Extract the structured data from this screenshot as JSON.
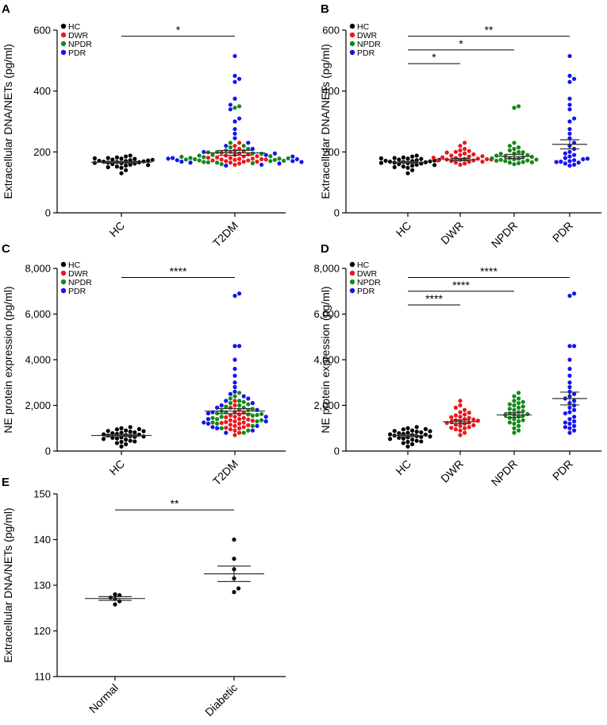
{
  "colors": {
    "HC": "#000000",
    "DWR": "#e8191c",
    "NPDR": "#138a17",
    "PDR": "#1414ee"
  },
  "chart_data": [
    {
      "panel": "A",
      "type": "scatter",
      "ylabel": "Extracellular DNA/NETs (pg/ml)",
      "ylim": [
        0,
        600
      ],
      "yticks": [
        "0",
        "200",
        "400",
        "600"
      ],
      "ytick_values": [
        0,
        200,
        400,
        600
      ],
      "categories": [
        "HC",
        "T2DM"
      ],
      "rotate_labels": true,
      "legend": [
        "HC",
        "DWR",
        "NPDR",
        "PDR"
      ],
      "means": [
        166,
        197
      ],
      "sem": [
        3,
        8
      ],
      "significance": [
        {
          "from": 0,
          "to": 1,
          "text": "*",
          "y": 580
        }
      ],
      "groups": [
        {
          "category": 0,
          "series": [
            {
              "name": "HC",
              "values": [
                130,
                140,
                148,
                152,
                155,
                158,
                160,
                162,
                163,
                165,
                166,
                167,
                168,
                169,
                170,
                171,
                172,
                173,
                175,
                177,
                178,
                180,
                182,
                185,
                150,
                157,
                164,
                174,
                179,
                188
              ]
            }
          ]
        },
        {
          "category": 1,
          "series": [
            {
              "name": "DWR",
              "values": [
                158,
                162,
                165,
                168,
                170,
                172,
                174,
                175,
                177,
                178,
                180,
                182,
                185,
                188,
                190,
                195,
                200,
                205,
                210,
                220,
                230,
                168,
                172,
                176,
                181,
                186,
                192,
                198,
                203,
                175
              ]
            },
            {
              "name": "NPDR",
              "values": [
                160,
                163,
                165,
                167,
                170,
                172,
                174,
                176,
                178,
                180,
                183,
                186,
                190,
                195,
                200,
                205,
                210,
                215,
                220,
                230,
                345,
                350,
                166,
                171,
                175,
                179,
                184,
                188,
                194,
                199
              ]
            },
            {
              "name": "PDR",
              "values": [
                155,
                158,
                162,
                165,
                168,
                170,
                173,
                176,
                180,
                185,
                190,
                195,
                200,
                210,
                220,
                230,
                245,
                260,
                275,
                300,
                310,
                340,
                355,
                375,
                430,
                440,
                450,
                515,
                167,
                178
              ]
            }
          ]
        }
      ]
    },
    {
      "panel": "B",
      "type": "scatter",
      "ylabel": "Extracellular DNA/NETs (pg/ml)",
      "ylim": [
        0,
        600
      ],
      "yticks": [
        "0",
        "200",
        "400",
        "600"
      ],
      "ytick_values": [
        0,
        200,
        400,
        600
      ],
      "categories": [
        "HC",
        "DWR",
        "NPDR",
        "PDR"
      ],
      "rotate_labels": true,
      "legend": [
        "HC",
        "DWR",
        "NPDR",
        "PDR"
      ],
      "means": [
        166,
        175,
        185,
        225
      ],
      "sem": [
        3,
        4,
        7,
        15
      ],
      "significance": [
        {
          "from": 0,
          "to": 3,
          "text": "**",
          "y": 580
        },
        {
          "from": 0,
          "to": 2,
          "text": "*",
          "y": 535
        },
        {
          "from": 0,
          "to": 1,
          "text": "*",
          "y": 490
        }
      ],
      "groups": [
        {
          "category": 0,
          "series": [
            {
              "name": "HC",
              "values": [
                130,
                140,
                148,
                152,
                155,
                158,
                160,
                162,
                163,
                165,
                166,
                167,
                168,
                169,
                170,
                171,
                172,
                173,
                175,
                177,
                178,
                180,
                182,
                185,
                150,
                157,
                164,
                174,
                179,
                188
              ]
            }
          ]
        },
        {
          "category": 1,
          "series": [
            {
              "name": "DWR",
              "values": [
                158,
                162,
                165,
                168,
                170,
                172,
                174,
                175,
                177,
                178,
                180,
                182,
                185,
                188,
                190,
                195,
                200,
                205,
                210,
                220,
                230,
                168,
                172,
                176,
                181,
                186,
                192,
                198,
                203,
                175
              ]
            }
          ]
        },
        {
          "category": 2,
          "series": [
            {
              "name": "NPDR",
              "values": [
                160,
                163,
                165,
                167,
                170,
                172,
                174,
                176,
                178,
                180,
                183,
                186,
                190,
                195,
                200,
                205,
                210,
                215,
                220,
                230,
                345,
                350,
                166,
                171,
                175,
                179,
                184,
                188,
                194,
                199
              ]
            }
          ]
        },
        {
          "category": 3,
          "series": [
            {
              "name": "PDR",
              "values": [
                155,
                158,
                162,
                165,
                168,
                170,
                173,
                176,
                180,
                185,
                190,
                195,
                200,
                210,
                220,
                230,
                245,
                260,
                275,
                300,
                310,
                340,
                355,
                375,
                430,
                440,
                450,
                515,
                167,
                178
              ]
            }
          ]
        }
      ]
    },
    {
      "panel": "C",
      "type": "scatter",
      "ylabel": "NE protein expression (pg/ml)",
      "ylim": [
        0,
        8000
      ],
      "yticks": [
        "0",
        "2,000",
        "4,000",
        "6,000",
        "8,000"
      ],
      "ytick_values": [
        0,
        2000,
        4000,
        6000,
        8000
      ],
      "categories": [
        "HC",
        "T2DM"
      ],
      "rotate_labels": true,
      "legend": [
        "HC",
        "DWR",
        "NPDR",
        "PDR"
      ],
      "means": [
        680,
        1750
      ],
      "sem": [
        50,
        110
      ],
      "significance": [
        {
          "from": 0,
          "to": 1,
          "text": "****",
          "y": 7600
        }
      ],
      "groups": [
        {
          "category": 0,
          "series": [
            {
              "name": "HC",
              "values": [
                200,
                300,
                350,
                400,
                450,
                500,
                550,
                580,
                600,
                620,
                650,
                680,
                700,
                720,
                750,
                780,
                800,
                820,
                850,
                880,
                900,
                950,
                1000,
                1050,
                530,
                640,
                730,
                870,
                960,
                420
              ]
            }
          ]
        },
        {
          "category": 1,
          "series": [
            {
              "name": "DWR",
              "values": [
                700,
                800,
                900,
                950,
                1000,
                1050,
                1100,
                1150,
                1200,
                1250,
                1300,
                1350,
                1400,
                1450,
                1500,
                1600,
                1700,
                1800,
                2000,
                2200,
                1020,
                1130,
                1270,
                1380,
                1480,
                1560,
                1680,
                1900,
                1230,
                1330
              ]
            },
            {
              "name": "NPDR",
              "values": [
                800,
                900,
                1000,
                1100,
                1200,
                1300,
                1400,
                1500,
                1600,
                1700,
                1800,
                1900,
                2000,
                2100,
                2200,
                2300,
                2400,
                2550,
                1250,
                1350,
                1450,
                1550,
                1650,
                1750,
                1850,
                1950,
                2050,
                2150,
                1580,
                1620
              ]
            },
            {
              "name": "PDR",
              "values": [
                800,
                900,
                1000,
                1100,
                1200,
                1300,
                1400,
                1500,
                1700,
                1800,
                1900,
                2000,
                2100,
                2200,
                2400,
                2600,
                2800,
                3000,
                3300,
                3600,
                4000,
                4600,
                4600,
                6800,
                6900,
                1250,
                1650,
                2300,
                2500,
                1050
              ]
            }
          ]
        }
      ]
    },
    {
      "panel": "D",
      "type": "scatter",
      "ylabel": "NE protein expression (pg/ml)",
      "ylim": [
        0,
        8000
      ],
      "yticks": [
        "0",
        "2,000",
        "4,000",
        "6,000",
        "8,000"
      ],
      "ytick_values": [
        0,
        2000,
        4000,
        6000,
        8000
      ],
      "categories": [
        "HC",
        "DWR",
        "NPDR",
        "PDR"
      ],
      "rotate_labels": true,
      "legend": [
        "HC",
        "DWR",
        "NPDR",
        "PDR"
      ],
      "means": [
        680,
        1280,
        1580,
        2300
      ],
      "sem": [
        50,
        80,
        100,
        280
      ],
      "significance": [
        {
          "from": 0,
          "to": 3,
          "text": "****",
          "y": 7600
        },
        {
          "from": 0,
          "to": 2,
          "text": "****",
          "y": 7000
        },
        {
          "from": 0,
          "to": 1,
          "text": "****",
          "y": 6400
        }
      ],
      "groups": [
        {
          "category": 0,
          "series": [
            {
              "name": "HC",
              "values": [
                200,
                300,
                350,
                400,
                450,
                500,
                550,
                580,
                600,
                620,
                650,
                680,
                700,
                720,
                750,
                780,
                800,
                820,
                850,
                880,
                900,
                950,
                1000,
                1050,
                530,
                640,
                730,
                870,
                960,
                420
              ]
            }
          ]
        },
        {
          "category": 1,
          "series": [
            {
              "name": "DWR",
              "values": [
                700,
                800,
                900,
                950,
                1000,
                1050,
                1100,
                1150,
                1200,
                1250,
                1300,
                1350,
                1400,
                1450,
                1500,
                1600,
                1700,
                1800,
                2000,
                2200,
                1020,
                1130,
                1270,
                1380,
                1480,
                1560,
                1680,
                1900,
                1230,
                1330
              ]
            }
          ]
        },
        {
          "category": 2,
          "series": [
            {
              "name": "NPDR",
              "values": [
                800,
                900,
                1000,
                1100,
                1200,
                1300,
                1400,
                1500,
                1600,
                1700,
                1800,
                1900,
                2000,
                2100,
                2200,
                2300,
                2400,
                2550,
                1250,
                1350,
                1450,
                1550,
                1650,
                1750,
                1850,
                1950,
                2050,
                2150,
                1580,
                1620
              ]
            }
          ]
        },
        {
          "category": 3,
          "series": [
            {
              "name": "PDR",
              "values": [
                800,
                900,
                1000,
                1100,
                1200,
                1300,
                1400,
                1500,
                1700,
                1800,
                1900,
                2000,
                2100,
                2200,
                2400,
                2600,
                2800,
                3000,
                3300,
                3600,
                4000,
                4600,
                4600,
                6800,
                6900,
                1250,
                1650,
                2300,
                2500,
                1050
              ]
            }
          ]
        }
      ]
    },
    {
      "panel": "E",
      "type": "scatter",
      "ylabel": "Extracellular DNA/NETs (pg/ml)",
      "ylim": [
        110,
        150
      ],
      "yticks": [
        "110",
        "120",
        "130",
        "140",
        "150"
      ],
      "ytick_values": [
        110,
        120,
        130,
        140,
        150
      ],
      "categories": [
        "Normal",
        "Diabetic"
      ],
      "rotate_labels": true,
      "legend": [],
      "means": [
        127.1,
        132.5
      ],
      "sem": [
        0.4,
        1.7
      ],
      "significance": [
        {
          "from": 0,
          "to": 1,
          "text": "**",
          "y": 146.5
        }
      ],
      "groups": [
        {
          "category": 0,
          "series": [
            {
              "name": "HC",
              "values": [
                125.8,
                126.5,
                127.0,
                127.3,
                127.8,
                128.0
              ]
            }
          ]
        },
        {
          "category": 1,
          "series": [
            {
              "name": "HC",
              "values": [
                128.5,
                129.3,
                131.5,
                133.5,
                135.8,
                140.0
              ]
            }
          ]
        }
      ]
    }
  ]
}
